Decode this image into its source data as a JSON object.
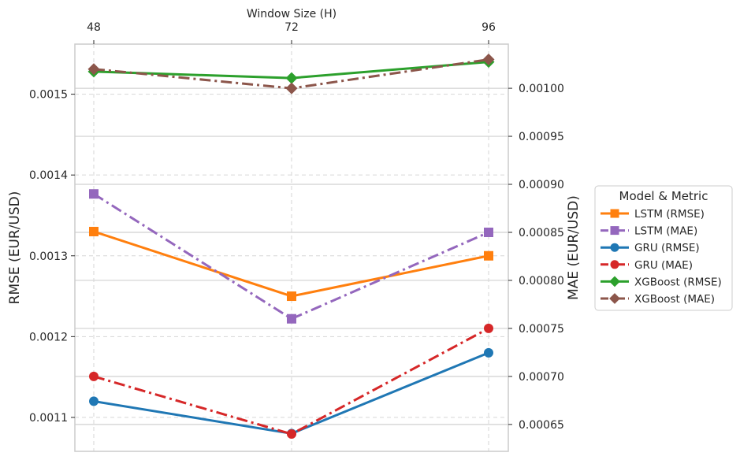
{
  "chart_data": {
    "type": "line",
    "title": "",
    "xlabel": "Window Size (H)",
    "ylabel_left": "RMSE (EUR/USD)",
    "ylabel_right": "MAE (EUR/USD)",
    "x": [
      48,
      72,
      96
    ],
    "x_tick_labels": [
      "48",
      "72",
      "96"
    ],
    "y_left_ticks": [
      "0.0011",
      "0.0012",
      "0.0013",
      "0.0014",
      "0.0015"
    ],
    "y_right_ticks": [
      "0.00065",
      "0.00070",
      "0.00075",
      "0.00080",
      "0.00085",
      "0.00090",
      "0.00095",
      "0.00100"
    ],
    "y_left_range": [
      0.001058,
      0.001562
    ],
    "y_right_range": [
      0.000622,
      0.001046
    ],
    "grid": true,
    "legend_position": "right",
    "legend_title": "Model & Metric",
    "series": [
      {
        "name": "LSTM (RMSE)",
        "axis": "left",
        "values": [
          0.00133,
          0.00125,
          0.0013
        ],
        "color": "#ff7f0e",
        "marker": "square",
        "dash": "solid"
      },
      {
        "name": "LSTM (MAE)",
        "axis": "right",
        "values": [
          0.00089,
          0.00076,
          0.00085
        ],
        "color": "#9467bd",
        "marker": "square",
        "dash": "dashdot"
      },
      {
        "name": "GRU (RMSE)",
        "axis": "left",
        "values": [
          0.00112,
          0.00108,
          0.00118
        ],
        "color": "#1f77b4",
        "marker": "circle",
        "dash": "solid"
      },
      {
        "name": "GRU (MAE)",
        "axis": "right",
        "values": [
          0.0007,
          0.00064,
          0.00075
        ],
        "color": "#d62728",
        "marker": "circle",
        "dash": "dashdot"
      },
      {
        "name": "XGBoost (RMSE)",
        "axis": "left",
        "values": [
          0.001528,
          0.00152,
          0.00154
        ],
        "color": "#2ca02c",
        "marker": "diamond",
        "dash": "solid"
      },
      {
        "name": "XGBoost (MAE)",
        "axis": "right",
        "values": [
          0.00102,
          0.001,
          0.00103
        ],
        "color": "#8c564b",
        "marker": "diamond",
        "dash": "dashdot"
      }
    ]
  }
}
